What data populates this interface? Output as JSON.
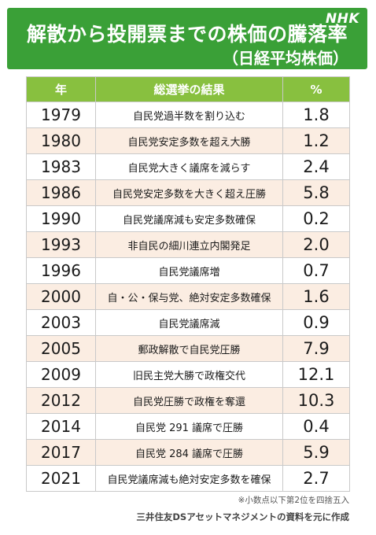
{
  "header": {
    "title": "解散から投開票までの株価の騰落率",
    "subtitle": "（日経平均株価）",
    "logo_text": "NHK",
    "background_color": "#3aa037"
  },
  "table": {
    "columns": [
      "年",
      "総選挙の結果",
      "%"
    ],
    "header_color": "#88c03f",
    "stripe_color": "#fbede2",
    "rows": [
      {
        "year": "1979",
        "result": "自民党過半数を割り込む",
        "pct": "1.8"
      },
      {
        "year": "1980",
        "result": "自民党安定多数を超え大勝",
        "pct": "1.2"
      },
      {
        "year": "1983",
        "result": "自民党大きく議席を減らす",
        "pct": "2.4"
      },
      {
        "year": "1986",
        "result": "自民党安定多数を大きく超え圧勝",
        "pct": "5.8"
      },
      {
        "year": "1990",
        "result": "自民党議席減も安定多数確保",
        "pct": "0.2"
      },
      {
        "year": "1993",
        "result": "非自民の細川連立内閣発足",
        "pct": "2.0"
      },
      {
        "year": "1996",
        "result": "自民党議席増",
        "pct": "0.7"
      },
      {
        "year": "2000",
        "result": "自・公・保与党、絶対安定多数確保",
        "pct": "1.6"
      },
      {
        "year": "2003",
        "result": "自民党議席減",
        "pct": "0.9"
      },
      {
        "year": "2005",
        "result": "郵政解散で自民党圧勝",
        "pct": "7.9"
      },
      {
        "year": "2009",
        "result": "旧民主党大勝で政権交代",
        "pct": "12.1"
      },
      {
        "year": "2012",
        "result": "自民党圧勝で政権を奪還",
        "pct": "10.3"
      },
      {
        "year": "2014",
        "result": "自民党 291 議席で圧勝",
        "pct": "0.4"
      },
      {
        "year": "2017",
        "result": "自民党 284 議席で圧勝",
        "pct": "5.9"
      },
      {
        "year": "2021",
        "result": "自民党議席減も絶対安定多数を確保",
        "pct": "2.7"
      }
    ]
  },
  "notes": {
    "rounding": "※小数点以下第2位を四捨五入",
    "source": "三井住友DSアセットマネジメントの資料を元に作成"
  }
}
